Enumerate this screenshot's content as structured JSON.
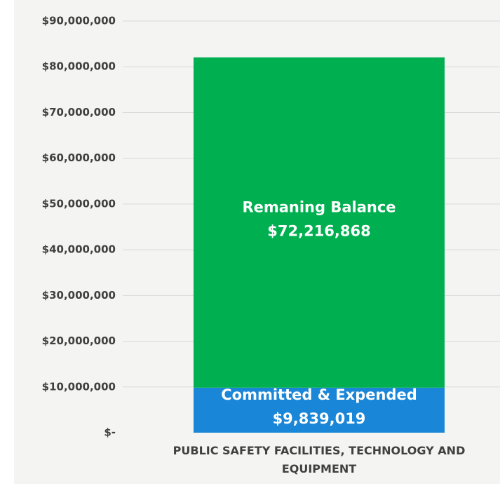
{
  "chart_data": {
    "type": "stacked_bar",
    "categories": [
      "PUBLIC SAFETY FACILITIES, TECHNOLOGY AND EQUIPMENT"
    ],
    "series": [
      {
        "name": "Committed & Expended",
        "color": "#1a86d8",
        "values": [
          9839019
        ],
        "value_labels": [
          "$9,839,019"
        ]
      },
      {
        "name": "Remaning Balance",
        "color": "#00b050",
        "values": [
          72216868
        ],
        "value_labels": [
          "$72,216,868"
        ]
      }
    ],
    "ylim": [
      0,
      90000000
    ],
    "yticks": [
      {
        "value": 0,
        "label": "$-"
      },
      {
        "value": 10000000,
        "label": "$10,000,000"
      },
      {
        "value": 20000000,
        "label": "$20,000,000"
      },
      {
        "value": 30000000,
        "label": "$30,000,000"
      },
      {
        "value": 40000000,
        "label": "$40,000,000"
      },
      {
        "value": 50000000,
        "label": "$50,000,000"
      },
      {
        "value": 60000000,
        "label": "$60,000,000"
      },
      {
        "value": 70000000,
        "label": "$70,000,000"
      },
      {
        "value": 80000000,
        "label": "$80,000,000"
      },
      {
        "value": 90000000,
        "label": "$90,000,000"
      }
    ],
    "grid": true
  }
}
